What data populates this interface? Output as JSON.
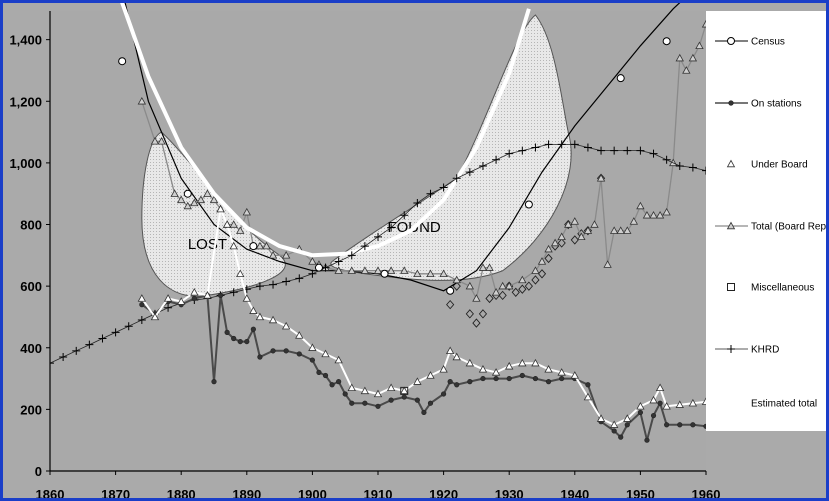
{
  "chart_data": {
    "type": "line",
    "title": "",
    "xlabel": "",
    "ylabel": "",
    "xlim": [
      1860,
      1960
    ],
    "ylim": [
      0,
      1480
    ],
    "x_ticks": [
      1860,
      1870,
      1880,
      1890,
      1900,
      1910,
      1920,
      1930,
      1940,
      1950,
      1960
    ],
    "y_ticks": [
      0,
      200,
      400,
      600,
      800,
      1000,
      1200,
      1400
    ],
    "y_tick_labels": [
      "0",
      "200",
      "400",
      "600",
      "800",
      "1,000",
      "1,200",
      "1,400"
    ],
    "grid": false,
    "legend_position": "right",
    "region_labels": [
      "LOST",
      "FOUND"
    ],
    "series": [
      {
        "name": "Census",
        "marker": "circle",
        "color": "#000000",
        "x": [
          1871,
          1881,
          1891,
          1901,
          1911,
          1921,
          1933,
          1947,
          1954
        ],
        "y": [
          1330,
          900,
          730,
          660,
          640,
          585,
          865,
          1275,
          1395
        ]
      },
      {
        "name": "On stations",
        "marker": "star",
        "color": "#555555",
        "x": [
          1874,
          1876,
          1878,
          1880,
          1882,
          1884,
          1885,
          1886,
          1887,
          1888,
          1889,
          1890,
          1891,
          1892,
          1894,
          1896,
          1898,
          1900,
          1901,
          1902,
          1903,
          1904,
          1905,
          1906,
          1908,
          1910,
          1912,
          1914,
          1916,
          1917,
          1918,
          1920,
          1921,
          1922,
          1924,
          1926,
          1928,
          1930,
          1932,
          1934,
          1936,
          1938,
          1940,
          1942,
          1944,
          1946,
          1947,
          1948,
          1950,
          1951,
          1952,
          1953,
          1954,
          1956,
          1958,
          1960
        ],
        "y": [
          540,
          510,
          550,
          540,
          560,
          570,
          290,
          570,
          450,
          430,
          420,
          420,
          460,
          370,
          390,
          390,
          380,
          360,
          320,
          310,
          280,
          290,
          250,
          220,
          220,
          210,
          230,
          240,
          230,
          190,
          220,
          250,
          290,
          280,
          290,
          300,
          300,
          300,
          310,
          300,
          290,
          300,
          300,
          280,
          160,
          130,
          110,
          150,
          190,
          100,
          180,
          220,
          150,
          150,
          150,
          145
        ]
      },
      {
        "name": "Under Board",
        "marker": "triangle-open",
        "color": "#ffffff",
        "x": [
          1874,
          1876,
          1878,
          1880,
          1882,
          1884,
          1886,
          1887,
          1888,
          1889,
          1890,
          1891,
          1892,
          1894,
          1896,
          1898,
          1900,
          1902,
          1904,
          1906,
          1908,
          1910,
          1912,
          1914,
          1916,
          1918,
          1920,
          1921,
          1922,
          1924,
          1926,
          1928,
          1930,
          1932,
          1934,
          1936,
          1938,
          1940,
          1942,
          1944,
          1946,
          1948,
          1950,
          1952,
          1953,
          1954,
          1956,
          1958,
          1960
        ],
        "y": [
          560,
          500,
          560,
          550,
          580,
          570,
          850,
          800,
          730,
          640,
          560,
          520,
          500,
          490,
          470,
          440,
          400,
          380,
          360,
          270,
          260,
          250,
          270,
          260,
          290,
          310,
          330,
          390,
          370,
          350,
          330,
          320,
          340,
          350,
          350,
          330,
          320,
          310,
          240,
          170,
          150,
          170,
          210,
          230,
          270,
          210,
          215,
          220,
          225
        ]
      },
      {
        "name": "Total (Board Reports)",
        "marker": "triangle",
        "color": "#888888",
        "x": [
          1874,
          1876,
          1877,
          1879,
          1880,
          1881,
          1882,
          1883,
          1884,
          1885,
          1886,
          1887,
          1888,
          1889,
          1890,
          1891,
          1892,
          1893,
          1894,
          1896,
          1898,
          1900,
          1901,
          1902,
          1904,
          1906,
          1908,
          1910,
          1912,
          1914,
          1916,
          1918,
          1920,
          1922,
          1924,
          1925,
          1926,
          1927,
          1928,
          1929,
          1930,
          1932,
          1934,
          1935,
          1936,
          1937,
          1938,
          1939,
          1940,
          1941,
          1942,
          1943,
          1944,
          1945,
          1946,
          1947,
          1948,
          1949,
          1950,
          1951,
          1952,
          1953,
          1954,
          1955,
          1956,
          1957,
          1958,
          1959,
          1960
        ],
        "y": [
          1200,
          1070,
          1070,
          900,
          880,
          860,
          870,
          880,
          900,
          880,
          850,
          800,
          800,
          780,
          840,
          730,
          730,
          730,
          700,
          700,
          720,
          680,
          670,
          660,
          650,
          650,
          650,
          650,
          650,
          650,
          640,
          640,
          640,
          620,
          600,
          560,
          660,
          660,
          580,
          600,
          600,
          620,
          650,
          680,
          720,
          740,
          760,
          800,
          810,
          760,
          780,
          800,
          950,
          670,
          780,
          780,
          780,
          810,
          860,
          830,
          830,
          830,
          840,
          1000,
          1340,
          1300,
          1340,
          1380,
          1450
        ]
      },
      {
        "name": "Miscellaneous",
        "marker": "square-open",
        "color": "#333333",
        "x": [
          1914
        ],
        "y": [
          260
        ]
      },
      {
        "name": "KHRD",
        "marker": "plus",
        "color": "#000000",
        "x": [
          1860,
          1862,
          1864,
          1866,
          1868,
          1870,
          1872,
          1874,
          1876,
          1878,
          1880,
          1882,
          1884,
          1886,
          1888,
          1890,
          1892,
          1894,
          1896,
          1898,
          1900,
          1902,
          1904,
          1906,
          1908,
          1910,
          1912,
          1914,
          1916,
          1918,
          1920,
          1922,
          1924,
          1926,
          1928,
          1930,
          1932,
          1934,
          1936,
          1938,
          1940,
          1942,
          1944,
          1946,
          1948,
          1950,
          1952,
          1954,
          1956,
          1958,
          1960
        ],
        "y": [
          350,
          370,
          390,
          410,
          430,
          450,
          470,
          490,
          510,
          530,
          545,
          555,
          560,
          570,
          580,
          590,
          600,
          605,
          615,
          625,
          640,
          660,
          680,
          700,
          730,
          760,
          790,
          830,
          870,
          900,
          920,
          950,
          970,
          990,
          1010,
          1030,
          1040,
          1050,
          1060,
          1060,
          1060,
          1050,
          1040,
          1040,
          1040,
          1040,
          1030,
          1010,
          990,
          985,
          975
        ]
      },
      {
        "name": "Estimated total",
        "marker": "none",
        "color": "#ffffff",
        "x": [
          1868,
          1875,
          1880,
          1885,
          1890,
          1895,
          1900,
          1905,
          1910,
          1915,
          1920,
          1925,
          1930,
          1933
        ],
        "y": [
          1700,
          1280,
          1050,
          900,
          790,
          730,
          700,
          705,
          730,
          780,
          880,
          1050,
          1290,
          1500
        ]
      }
    ],
    "other_series": [
      {
        "marker": "diamond-open",
        "color": "#333333",
        "x": [
          1921,
          1922,
          1924,
          1925,
          1926,
          1927,
          1928,
          1929,
          1930,
          1931,
          1932,
          1933,
          1934,
          1935,
          1936,
          1937,
          1938,
          1939,
          1940,
          1941,
          1942,
          1944
        ],
        "y": [
          540,
          600,
          510,
          480,
          510,
          560,
          570,
          570,
          600,
          580,
          590,
          600,
          620,
          640,
          690,
          730,
          740,
          800,
          750,
          770,
          780,
          950
        ]
      },
      {
        "marker": "none",
        "color": "#000000",
        "x": [
          1870,
          1875,
          1880,
          1885,
          1890,
          1895,
          1900,
          1905,
          1910,
          1915,
          1920,
          1925,
          1930,
          1935,
          1940,
          1945,
          1950,
          1955,
          1958
        ],
        "y": [
          1650,
          1200,
          950,
          800,
          720,
          680,
          650,
          650,
          640,
          620,
          585,
          650,
          790,
          970,
          1120,
          1250,
          1380,
          1500,
          1560
        ]
      }
    ]
  }
}
